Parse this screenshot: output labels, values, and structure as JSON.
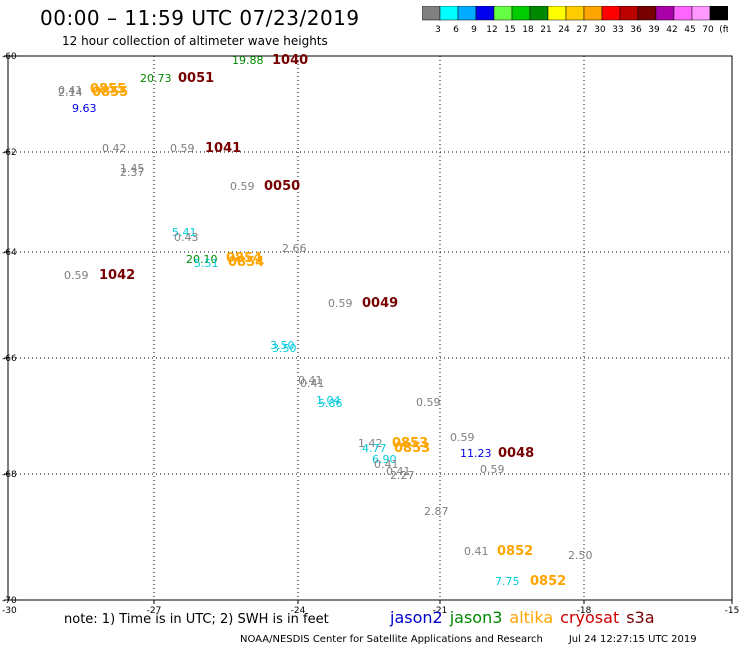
{
  "title": "00:00 – 11:59 UTC 07/23/2019",
  "subtitle": "12 hour collection of altimeter wave heights",
  "colorbar": {
    "labels": [
      "3",
      "6",
      "9",
      "12",
      "15",
      "18",
      "21",
      "24",
      "27",
      "30",
      "33",
      "36",
      "39",
      "42",
      "45",
      "70",
      "(ft)"
    ],
    "colors": [
      "#808080",
      "#00ffff",
      "#00aaff",
      "#0000ee",
      "#66ff44",
      "#00cc00",
      "#008800",
      "#ffff00",
      "#ffcc00",
      "#ffa500",
      "#ff0000",
      "#bb0000",
      "#770000",
      "#aa00aa",
      "#ff66ff",
      "#ff99ff",
      "#000000"
    ]
  },
  "map": {
    "lon_ticks": [
      "-27",
      "-24",
      "-21",
      "-18",
      "-15"
    ],
    "lat_ticks": [
      "-60",
      "-62",
      "-64",
      "-66",
      "-68",
      "-70"
    ],
    "corner_label": "-30"
  },
  "observations": [
    {
      "text": "19.88",
      "color": "#008800"
    },
    {
      "text": "1040",
      "color": "#770000"
    },
    {
      "text": "20.73",
      "color": "#008800"
    },
    {
      "text": "0051",
      "color": "#770000"
    },
    {
      "text": "0.41",
      "color": "#808080"
    },
    {
      "text": "2.14",
      "color": "#808080"
    },
    {
      "text": "0855",
      "color": "#ffa500"
    },
    {
      "text": "0855",
      "color": "#ffa500"
    },
    {
      "text": "9.63",
      "color": "#0000ee"
    },
    {
      "text": "0.42",
      "color": "#808080"
    },
    {
      "text": "0.59",
      "color": "#808080"
    },
    {
      "text": "1041",
      "color": "#770000"
    },
    {
      "text": "1.45",
      "color": "#808080"
    },
    {
      "text": "2.37",
      "color": "#808080"
    },
    {
      "text": "0.59",
      "color": "#808080"
    },
    {
      "text": "0050",
      "color": "#770000"
    },
    {
      "text": "5.41",
      "color": "#00ccdd"
    },
    {
      "text": "0.43",
      "color": "#808080"
    },
    {
      "text": "2.66",
      "color": "#808080"
    },
    {
      "text": "20.10",
      "color": "#008800"
    },
    {
      "text": "0854",
      "color": "#ffa500"
    },
    {
      "text": "5.51",
      "color": "#00ccdd"
    },
    {
      "text": "0854",
      "color": "#ffa500"
    },
    {
      "text": "0.59",
      "color": "#808080"
    },
    {
      "text": "1042",
      "color": "#770000"
    },
    {
      "text": "0.59",
      "color": "#808080"
    },
    {
      "text": "0049",
      "color": "#770000"
    },
    {
      "text": "3.50",
      "color": "#00ccdd"
    },
    {
      "text": "3.50",
      "color": "#00ccdd"
    },
    {
      "text": "0.41",
      "color": "#808080"
    },
    {
      "text": "0.41",
      "color": "#808080"
    },
    {
      "text": "1.04",
      "color": "#00ccdd"
    },
    {
      "text": "5.86",
      "color": "#00ccdd"
    },
    {
      "text": "0.59",
      "color": "#808080"
    },
    {
      "text": "0.59",
      "color": "#808080"
    },
    {
      "text": "1.42",
      "color": "#808080"
    },
    {
      "text": "4.77",
      "color": "#00ccdd"
    },
    {
      "text": "0853",
      "color": "#ffa500"
    },
    {
      "text": "0853",
      "color": "#ffa500"
    },
    {
      "text": "11.23",
      "color": "#0000ee"
    },
    {
      "text": "0048",
      "color": "#770000"
    },
    {
      "text": "6.90",
      "color": "#00ccdd"
    },
    {
      "text": "0.41",
      "color": "#808080"
    },
    {
      "text": "0.59",
      "color": "#808080"
    },
    {
      "text": "0.41",
      "color": "#808080"
    },
    {
      "text": "2.27",
      "color": "#808080"
    },
    {
      "text": "2.87",
      "color": "#808080"
    },
    {
      "text": "0.41",
      "color": "#808080"
    },
    {
      "text": "0852",
      "color": "#ffa500"
    },
    {
      "text": "2.50",
      "color": "#808080"
    },
    {
      "text": "7.75",
      "color": "#00ccdd"
    },
    {
      "text": "0852",
      "color": "#ffa500"
    }
  ],
  "footer_note": "note:  1) Time is in UTC;  2) SWH is in feet",
  "legend": [
    {
      "label": "jason2",
      "color": "#0000cc"
    },
    {
      "label": "jason3",
      "color": "#008800"
    },
    {
      "label": "altika",
      "color": "#ffa500"
    },
    {
      "label": "cryosat",
      "color": "#cc0000"
    },
    {
      "label": "s3a",
      "color": "#770000"
    }
  ],
  "credit": "NOAA/NESDIS Center for Satellite Applications and Research",
  "timestamp": "Jul 24 12:27:15 UTC 2019"
}
